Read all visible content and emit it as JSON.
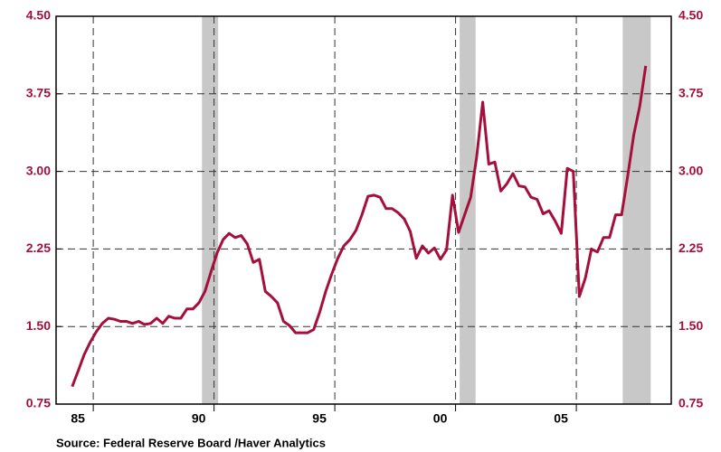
{
  "chart_data": {
    "type": "line",
    "source": "Source:  Federal Reserve Board /Haver Analytics",
    "xlim": [
      1984.46,
      2009.93
    ],
    "xticks": [
      {
        "value": 1986,
        "label": "85"
      },
      {
        "value": 1991,
        "label": "90"
      },
      {
        "value": 1996,
        "label": "95"
      },
      {
        "value": 2001,
        "label": "00"
      },
      {
        "value": 2006,
        "label": "05"
      }
    ],
    "ylim": [
      0.75,
      4.5
    ],
    "yticks": [
      {
        "value": 0.75,
        "label": "0.75"
      },
      {
        "value": 1.5,
        "label": "1.50"
      },
      {
        "value": 2.25,
        "label": "2.25"
      },
      {
        "value": 3.0,
        "label": "3.00"
      },
      {
        "value": 3.75,
        "label": "3.75"
      },
      {
        "value": 4.5,
        "label": "4.50"
      }
    ],
    "grid": true,
    "shaded_periods": [
      [
        1990.5,
        1991.17
      ],
      [
        2001.17,
        2001.83
      ],
      [
        2007.92,
        2009.08
      ]
    ],
    "shade_color": "#c8c8c8",
    "series": [
      {
        "color": "#a50f3c",
        "x": [
          1985.125,
          1985.375,
          1985.625,
          1985.875,
          1986.125,
          1986.375,
          1986.625,
          1986.875,
          1987.125,
          1987.375,
          1987.625,
          1987.875,
          1988.125,
          1988.375,
          1988.625,
          1988.875,
          1989.125,
          1989.375,
          1989.625,
          1989.875,
          1990.125,
          1990.375,
          1990.625,
          1990.875,
          1991.125,
          1991.375,
          1991.625,
          1991.875,
          1992.125,
          1992.375,
          1992.625,
          1992.875,
          1993.125,
          1993.375,
          1993.625,
          1993.875,
          1994.125,
          1994.375,
          1994.625,
          1994.875,
          1995.125,
          1995.375,
          1995.625,
          1995.875,
          1996.125,
          1996.375,
          1996.625,
          1996.875,
          1997.125,
          1997.375,
          1997.625,
          1997.875,
          1998.125,
          1998.375,
          1998.625,
          1998.875,
          1999.125,
          1999.375,
          1999.625,
          1999.875,
          2000.125,
          2000.375,
          2000.625,
          2000.875,
          2001.125,
          2001.375,
          2001.625,
          2001.875,
          2002.125,
          2002.375,
          2002.625,
          2002.875,
          2003.125,
          2003.375,
          2003.625,
          2003.875,
          2004.125,
          2004.375,
          2004.625,
          2004.875,
          2005.125,
          2005.375,
          2005.625,
          2005.875,
          2006.125,
          2006.375,
          2006.625,
          2006.875,
          2007.125,
          2007.375,
          2007.625,
          2007.875,
          2008.125,
          2008.375,
          2008.625,
          2008.875
        ],
        "values": [
          0.92,
          1.07,
          1.23,
          1.35,
          1.45,
          1.53,
          1.58,
          1.57,
          1.55,
          1.55,
          1.53,
          1.55,
          1.52,
          1.53,
          1.58,
          1.53,
          1.6,
          1.58,
          1.58,
          1.67,
          1.67,
          1.73,
          1.84,
          2.03,
          2.21,
          2.34,
          2.4,
          2.36,
          2.38,
          2.3,
          2.12,
          2.15,
          1.84,
          1.79,
          1.73,
          1.55,
          1.51,
          1.44,
          1.44,
          1.44,
          1.47,
          1.64,
          1.84,
          2.01,
          2.16,
          2.28,
          2.34,
          2.43,
          2.58,
          2.76,
          2.77,
          2.75,
          2.64,
          2.64,
          2.6,
          2.54,
          2.42,
          2.16,
          2.28,
          2.21,
          2.26,
          2.15,
          2.24,
          2.77,
          2.41,
          2.58,
          2.75,
          3.14,
          3.67,
          3.07,
          3.09,
          2.81,
          2.88,
          2.98,
          2.86,
          2.85,
          2.75,
          2.73,
          2.59,
          2.62,
          2.52,
          2.4,
          3.03,
          3.0,
          1.79,
          1.97,
          2.25,
          2.22,
          2.36,
          2.36,
          2.58,
          2.58,
          2.95,
          3.35,
          3.63,
          4.02
        ]
      }
    ]
  }
}
